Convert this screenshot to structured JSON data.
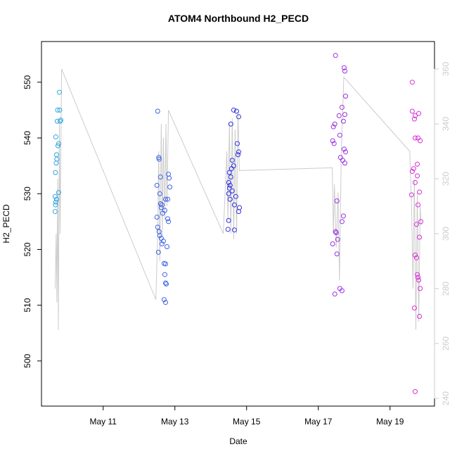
{
  "chart_data": {
    "type": "scatter",
    "title": "ATOM4 Northbound H2_PECD",
    "x_label": "Date",
    "y_label": "H2_PECD",
    "xlim": [
      9.28,
      20.24
    ],
    "ylim": [
      491.9,
      557.3
    ],
    "y2lim": [
      237.2,
      370
    ],
    "xticks": [
      {
        "value": 11,
        "label": "May 11"
      },
      {
        "value": 13,
        "label": "May 13"
      },
      {
        "value": 15,
        "label": "May 15"
      },
      {
        "value": 17,
        "label": "May 17"
      },
      {
        "value": 19,
        "label": "May 19"
      }
    ],
    "yticks": [
      500,
      510,
      520,
      530,
      540,
      550
    ],
    "y2ticks": [
      240,
      260,
      280,
      300,
      320,
      340,
      360
    ],
    "groups": [
      {
        "color": "#2ea6e0",
        "x": [
          9.78,
          9.73,
          9.79,
          9.72,
          9.8,
          9.82,
          9.68,
          9.76,
          9.74,
          9.7,
          9.71,
          9.67,
          9.76,
          9.66,
          9.7,
          9.68,
          9.67,
          9.66,
          9.69
        ],
        "values": [
          548.2,
          545,
          545,
          543,
          543,
          543.2,
          540.2,
          539,
          538.6,
          537,
          536.2,
          533.8,
          530.2,
          529.5,
          529,
          528.5,
          528,
          526.8,
          535.5
        ]
      },
      {
        "color": "#3f63e6",
        "x": [
          12.52,
          12.55,
          12.56,
          12.6,
          12.82,
          12.84,
          12.5,
          12.86,
          12.58,
          12.74,
          12.8,
          12.6,
          12.64,
          12.62,
          12.72,
          12.66,
          12.5,
          12.8,
          12.82,
          12.52,
          12.56,
          12.58,
          12.62,
          12.68,
          12.64,
          12.78,
          12.54,
          12.7,
          12.74,
          12.72,
          12.74,
          12.76,
          12.7,
          12.74
        ],
        "values": [
          544.8,
          536.5,
          536.2,
          533,
          533.5,
          532.8,
          531.5,
          531.2,
          530,
          529,
          529,
          528.2,
          528,
          527.5,
          527,
          526.5,
          525.8,
          525.5,
          525,
          524,
          523.2,
          522.5,
          522,
          521.5,
          521,
          520.5,
          519.5,
          517.5,
          517.4,
          515.5,
          514,
          513.8,
          511,
          510.5
        ]
      },
      {
        "color": "#3030e0",
        "x": [
          14.64,
          14.72,
          14.78,
          14.56,
          14.74,
          14.78,
          14.76,
          14.6,
          14.64,
          14.58,
          14.52,
          14.56,
          14.5,
          14.54,
          14.52,
          14.6,
          14.5,
          14.7,
          14.54,
          14.66,
          14.8,
          14.78,
          14.5,
          14.48,
          14.66
        ],
        "values": [
          545,
          544.8,
          543.8,
          542.5,
          539,
          537.5,
          537,
          536,
          535,
          534.5,
          533.8,
          533,
          532,
          531.5,
          531,
          530.5,
          530,
          529.5,
          529,
          528,
          527.5,
          526.8,
          525.2,
          523.6,
          523.5
        ]
      },
      {
        "color": "#9a30e0",
        "x": [
          17.48,
          17.72,
          17.74,
          17.76,
          17.66,
          17.74,
          17.58,
          17.7,
          17.46,
          17.42,
          17.6,
          17.4,
          17.44,
          17.72,
          17.76,
          17.62,
          17.68,
          17.74,
          17.52,
          17.7,
          17.66,
          17.48,
          17.5,
          17.54,
          17.4,
          17.52,
          17.6,
          17.66,
          17.46
        ],
        "values": [
          554.8,
          552.6,
          552,
          547.5,
          545.5,
          544.2,
          544,
          543,
          542.5,
          542,
          540.5,
          539.5,
          539,
          538,
          537.5,
          536.5,
          536,
          535.5,
          528.7,
          526,
          525,
          523.2,
          523,
          521.8,
          521,
          519.2,
          513,
          512.6,
          512
        ]
      },
      {
        "color": "#d82ed6",
        "x": [
          19.62,
          19.62,
          19.8,
          19.7,
          19.68,
          19.7,
          19.78,
          19.84,
          19.76,
          19.66,
          19.62,
          19.76,
          19.7,
          19.82,
          19.6,
          19.78,
          19.86,
          19.74,
          19.82,
          19.7,
          19.74,
          19.76,
          19.78,
          19.8,
          19.84,
          19.68,
          19.82,
          19.7
        ],
        "values": [
          550,
          544.8,
          544.4,
          544,
          543.4,
          540,
          540,
          539.5,
          535.3,
          534.5,
          534,
          533.2,
          532,
          530.3,
          529.8,
          528,
          525,
          524.5,
          522.2,
          519,
          518.5,
          515.5,
          515,
          514.5,
          513,
          509.5,
          508,
          494.5
        ]
      }
    ],
    "line": {
      "axis": "y2",
      "color": "#cccccc",
      "x": [
        9.66,
        9.69,
        9.71,
        9.73,
        9.75,
        9.78,
        9.8,
        9.84,
        12.47,
        12.52,
        12.55,
        12.58,
        12.62,
        12.65,
        12.68,
        12.72,
        12.75,
        12.78,
        12.82,
        14.35,
        14.45,
        14.48,
        14.52,
        14.56,
        14.6,
        14.64,
        14.68,
        14.72,
        14.76,
        14.8,
        17.39,
        17.42,
        17.45,
        17.5,
        17.55,
        17.59,
        17.64,
        17.71,
        19.55,
        19.6,
        19.64,
        19.68,
        19.72,
        19.76,
        19.8,
        19.84,
        19.87
      ],
      "values": [
        280,
        300,
        275,
        320,
        265,
        340,
        300,
        360,
        276,
        300,
        330,
        290,
        340,
        300,
        335,
        305,
        340,
        310,
        345,
        300,
        330,
        305,
        340,
        300,
        342,
        298,
        338,
        300,
        344,
        323,
        324,
        300,
        318,
        295,
        315,
        283,
        330,
        357,
        330,
        310,
        280,
        320,
        265,
        315,
        268,
        310,
        303
      ]
    }
  }
}
